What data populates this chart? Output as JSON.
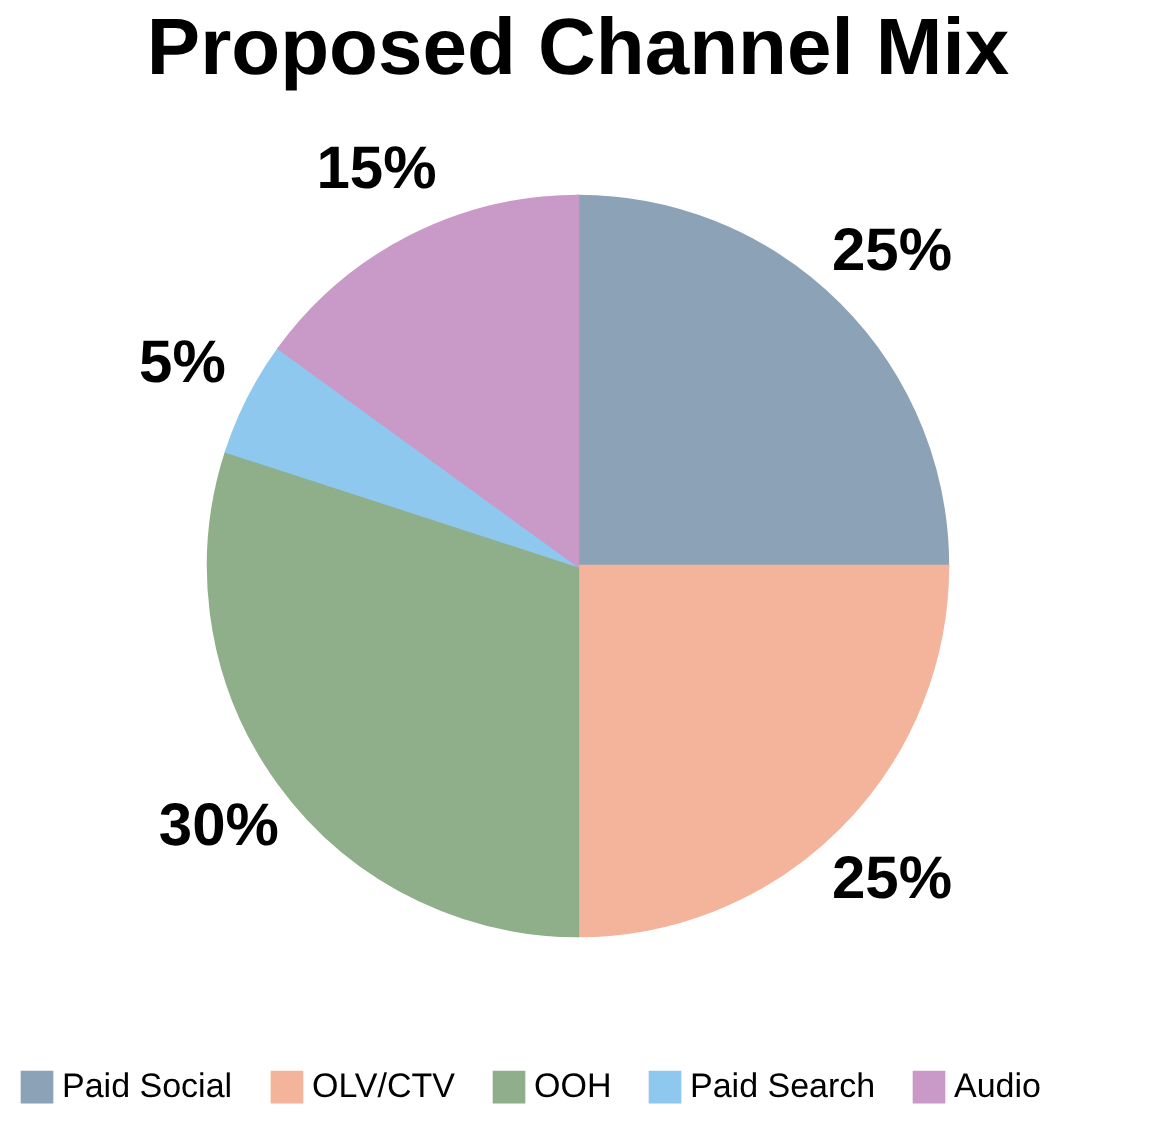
{
  "chart_data": {
    "type": "pie",
    "title": "Proposed Channel Mix",
    "categories": [
      "Paid Social",
      "OLV/CTV",
      "OOH",
      "Paid Search",
      "Audio"
    ],
    "values": [
      25,
      25,
      30,
      5,
      15
    ],
    "value_labels": [
      "25%",
      "25%",
      "30%",
      "5%",
      "15%"
    ],
    "colors": [
      "#8ca2b6",
      "#f4b49c",
      "#8fae8a",
      "#8ec8ee",
      "#c99ac8"
    ],
    "legend": "bottom"
  }
}
